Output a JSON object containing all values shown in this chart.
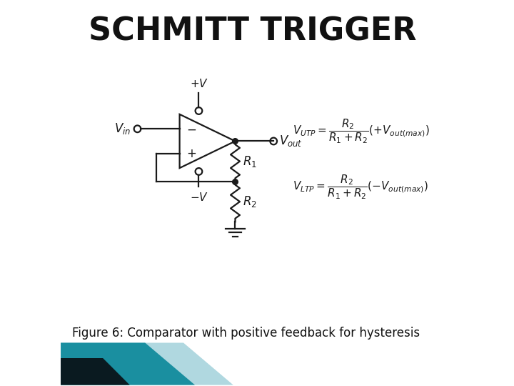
{
  "title": "SCHMITT TRIGGER",
  "title_fontsize": 32,
  "title_fontweight": "bold",
  "caption": "Figure 6: Comparator with positive feedback for hysteresis",
  "caption_fontsize": 12,
  "bg_color": "#ffffff",
  "circuit_color": "#1a1a1a",
  "fig_width": 7.2,
  "fig_height": 5.4,
  "dpi": 100,
  "xlim": [
    0,
    10
  ],
  "ylim": [
    0,
    10
  ],
  "teal_color": "#1a8fa0",
  "light_teal_color": "#b0d8e0",
  "dark_color": "#0a1a20"
}
